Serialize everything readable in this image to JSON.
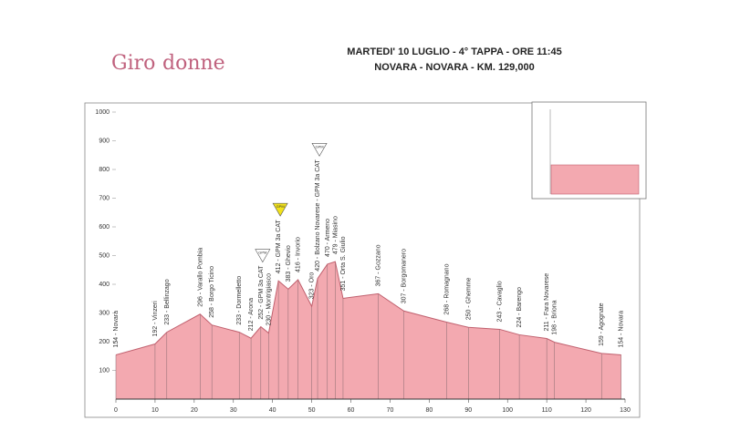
{
  "logo": {
    "part1": "Giro",
    "part2": "donne"
  },
  "chart_data": {
    "type": "area",
    "title": "MARTEDI' 10 LUGLIO - 4° TAPPA - ORE 11:45",
    "subtitle": "NOVARA - NOVARA - KM. 129,000",
    "x": [
      0,
      10,
      13,
      21.5,
      24.5,
      31.5,
      34.5,
      37,
      39,
      41.5,
      44,
      46.5,
      50,
      51.5,
      54,
      56,
      58,
      67,
      73.5,
      84.5,
      90,
      98,
      103,
      110,
      112,
      124,
      129
    ],
    "values": [
      154,
      192,
      233,
      296,
      258,
      233,
      212,
      252,
      230,
      412,
      383,
      416,
      323,
      420,
      470,
      479,
      351,
      367,
      307,
      268,
      250,
      243,
      224,
      211,
      198,
      159,
      154
    ],
    "value_labels": [
      "154 - Novara",
      "192 - Vinzeri",
      "233 - Bellinzago",
      "296 - Varallo Pombia",
      "258 - Borgo Ticino",
      "233 - Dormelletto",
      "212 - Arona",
      "252 - GPM 3a CAT",
      "230 - Montrigiasco",
      "412 - GPM 3a CAT",
      "383 - Ghevio",
      "416 - Invorio",
      "323 - Oro",
      "420 - Bolzano Novarese - GPM 3a CAT",
      "470 - Armeno",
      "479 - Miasino",
      "351 - Orta S. Giulio",
      "367 - Gozzano",
      "307 - Borgomanero",
      "268 - Romagnano",
      "250 - Ghemme",
      "243 - Cavaglio",
      "224 - Barengo",
      "211 - Fara Novarese",
      "198 - Briona",
      "159 - Agognate",
      "154 - Novara"
    ],
    "color": "#f3a9b0",
    "line_color": "#c0606e",
    "xlim": [
      0,
      130
    ],
    "xticks": [
      0,
      10,
      20,
      30,
      40,
      50,
      60,
      70,
      80,
      90,
      100,
      110,
      120,
      130
    ],
    "ylim": [
      0,
      1000
    ],
    "yticks": [
      100,
      200,
      300,
      400,
      500,
      600,
      700,
      800,
      900,
      1000
    ],
    "gpm": [
      {
        "x": 37,
        "label": "GPM",
        "color": "#ffffff"
      },
      {
        "x": 41.5,
        "label": "GPM",
        "color": "#f2e21a"
      },
      {
        "x": 51.5,
        "label": "GPM",
        "color": "#ffffff"
      }
    ]
  }
}
